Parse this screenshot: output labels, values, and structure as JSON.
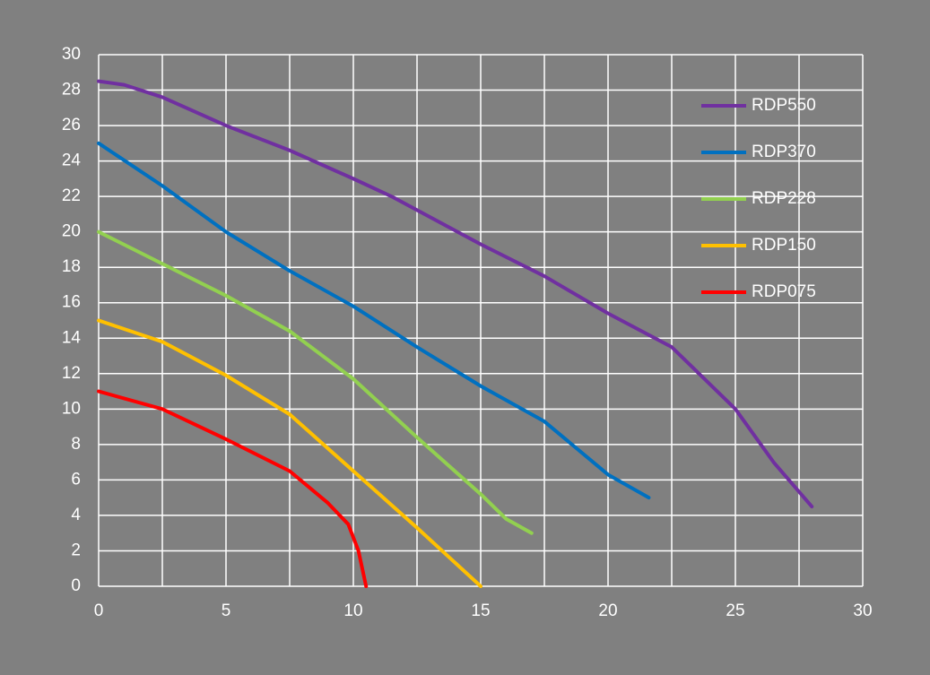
{
  "chart_data": {
    "type": "line",
    "xlim": [
      0,
      30
    ],
    "ylim": [
      0,
      30
    ],
    "xticks": [
      0,
      5,
      10,
      15,
      20,
      25,
      30
    ],
    "xminor": [
      2.5,
      7.5,
      12.5,
      17.5,
      22.5,
      27.5
    ],
    "yticks": [
      0,
      2,
      4,
      6,
      8,
      10,
      12,
      14,
      16,
      18,
      20,
      22,
      24,
      26,
      28,
      30
    ],
    "grid": true,
    "legend": "upper right",
    "series": [
      {
        "name": "RDP550",
        "color": "#7030a0",
        "x": [
          0,
          1,
          2.5,
          5,
          7.5,
          10,
          11.5,
          15,
          17.5,
          20,
          22.5,
          25,
          26.5,
          28
        ],
        "values": [
          28.5,
          28.3,
          27.6,
          26,
          24.6,
          23,
          22,
          19.3,
          17.5,
          15.4,
          13.5,
          10,
          7,
          4.5
        ]
      },
      {
        "name": "RDP370",
        "color": "#0070c0",
        "x": [
          0,
          2.5,
          5,
          7.5,
          10,
          12.5,
          15,
          17.5,
          20,
          21.6
        ],
        "values": [
          25,
          22.6,
          20,
          17.8,
          15.8,
          13.5,
          11.3,
          9.3,
          6.3,
          5
        ]
      },
      {
        "name": "RDP228",
        "color": "#92d050",
        "x": [
          0,
          2.5,
          5,
          7.5,
          10,
          12.5,
          15,
          16,
          17
        ],
        "values": [
          20,
          18.2,
          16.4,
          14.4,
          11.7,
          8.4,
          5.2,
          3.8,
          3
        ]
      },
      {
        "name": "RDP150",
        "color": "#ffc000",
        "x": [
          0,
          2.5,
          5,
          7.5,
          10,
          12.5,
          15
        ],
        "values": [
          15,
          13.8,
          11.9,
          9.7,
          6.5,
          3.3,
          0
        ]
      },
      {
        "name": "RDP075",
        "color": "#ff0000",
        "x": [
          0,
          2.5,
          5,
          7.5,
          9,
          9.8,
          10.2,
          10.5
        ],
        "values": [
          11,
          10,
          8.3,
          6.5,
          4.7,
          3.5,
          2,
          0
        ]
      }
    ]
  }
}
